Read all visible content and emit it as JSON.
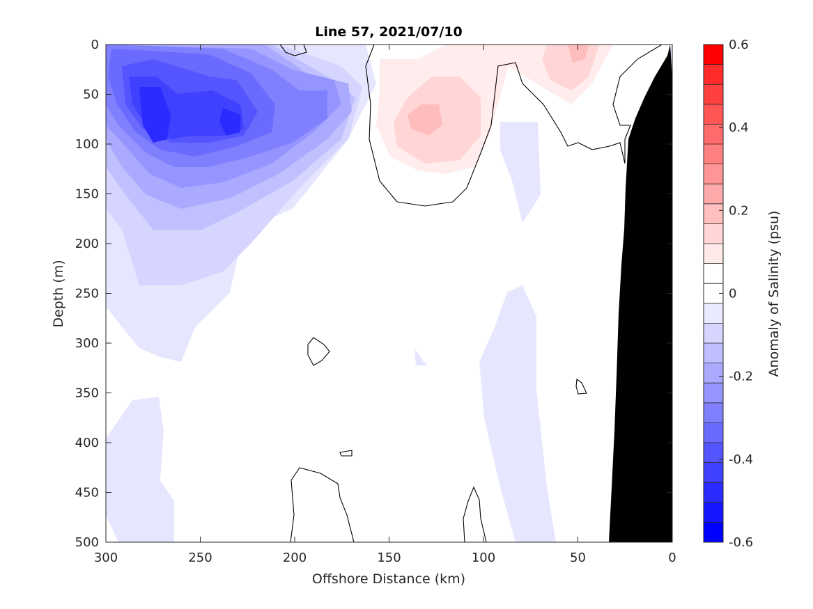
{
  "chart_data": {
    "type": "heatmap",
    "title": "Line 57, 2021/07/10",
    "xlabel": "Offshore Distance (km)",
    "ylabel": "Depth (m)",
    "xlim": [
      300,
      0
    ],
    "ylim": [
      0,
      500
    ],
    "x_ticks": [
      "300",
      "250",
      "200",
      "150",
      "100",
      "50",
      "0"
    ],
    "y_ticks": [
      "0",
      "50",
      "100",
      "150",
      "200",
      "250",
      "300",
      "350",
      "400",
      "450",
      "500"
    ],
    "colorbar": {
      "label": "Anomaly of Salinity (psu)",
      "range": [
        -0.6,
        0.6
      ],
      "step": 0.05,
      "tick_labels": [
        "-0.6",
        "-0.4",
        "-0.2",
        "0",
        "0.2",
        "0.4",
        "0.6"
      ],
      "colors_low_to_high": [
        "#0000ff",
        "#1515ff",
        "#2b2bff",
        "#4040ff",
        "#5555ff",
        "#6a6aff",
        "#8080ff",
        "#9595ff",
        "#aaaaff",
        "#bfbfff",
        "#d5d5ff",
        "#eaeaff",
        "#ffffff",
        "#ffffff",
        "#ffeaea",
        "#ffd5d5",
        "#ffbfbf",
        "#ffaaaa",
        "#ff9595",
        "#ff8080",
        "#ff6a6a",
        "#ff5555",
        "#ff4040",
        "#ff2b2b",
        "#ff0000"
      ]
    },
    "bathymetry_color": "#000000",
    "zero_contour": true,
    "features": [
      {
        "name": "Deep negative core",
        "x_km": 275,
        "depth_m": 75,
        "anomaly": -0.5
      },
      {
        "name": "Second negative core",
        "x_km": 233,
        "depth_m": 80,
        "anomaly": -0.45
      },
      {
        "name": "Negative lobe",
        "x_km": 190,
        "depth_m": 70,
        "anomaly": -0.3
      },
      {
        "name": "Positive core",
        "x_km": 125,
        "depth_m": 80,
        "anomaly": 0.15
      },
      {
        "name": "Positive surface lobe",
        "x_km": 50,
        "depth_m": 10,
        "anomaly": 0.1
      }
    ]
  }
}
